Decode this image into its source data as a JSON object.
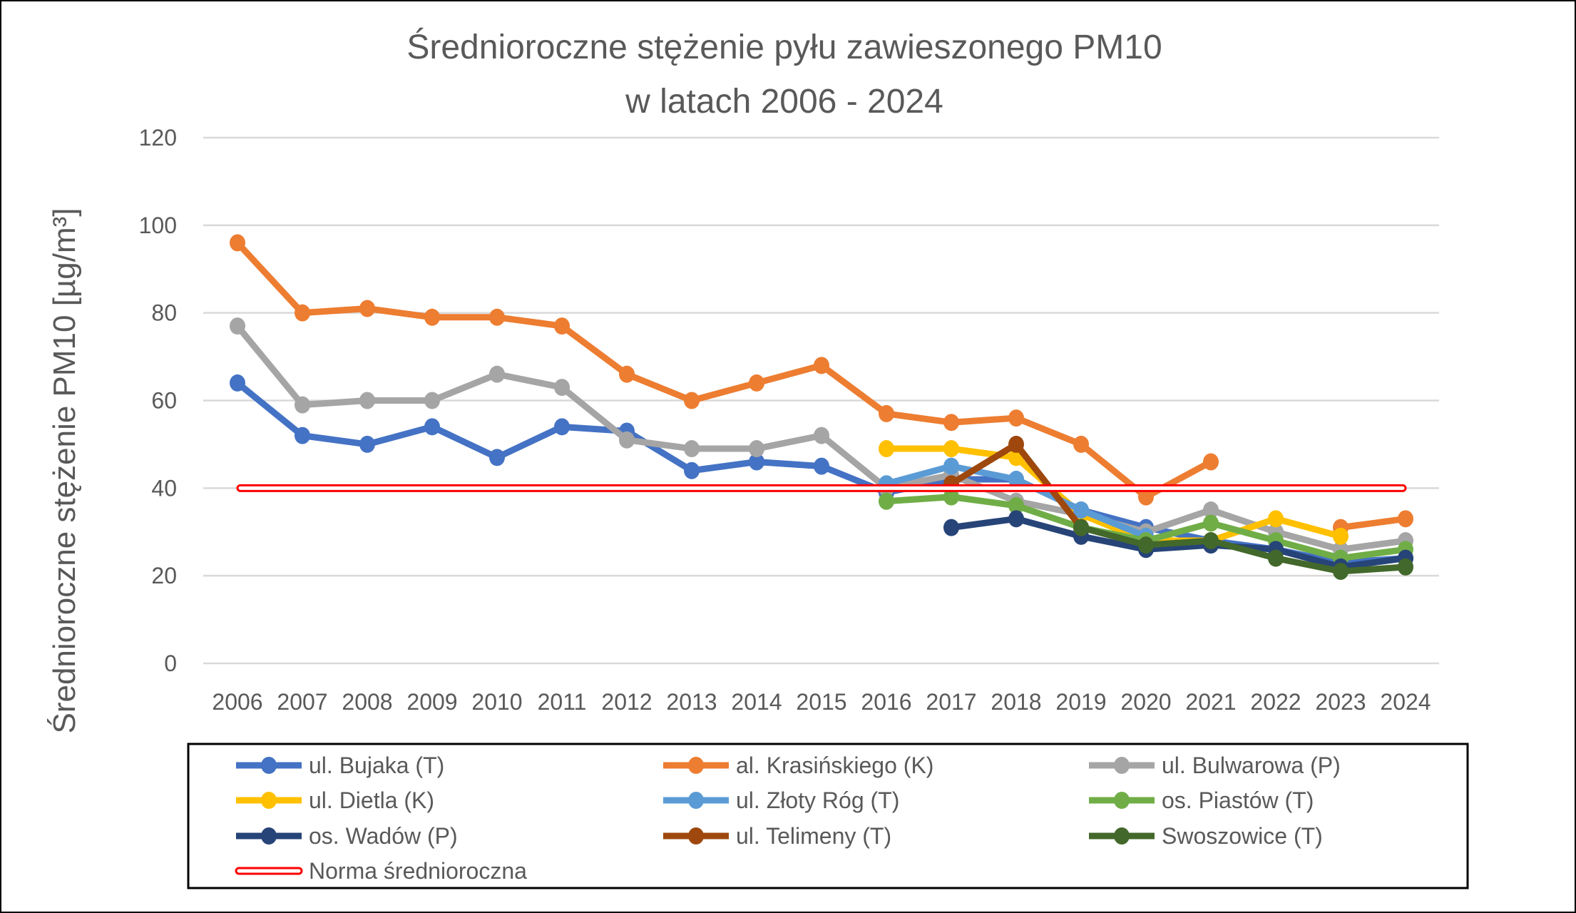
{
  "chart_data": {
    "type": "line",
    "title": [
      "Średnioroczne stężenie pyłu zawieszonego PM10",
      "w latach 2006 - 2024"
    ],
    "xlabel": "",
    "ylabel": "Średnioroczne stężenie PM10 [µg/m³]",
    "ylim": [
      0,
      120
    ],
    "yticks": [
      0,
      20,
      40,
      60,
      80,
      100,
      120
    ],
    "grid": true,
    "legend_position": "bottom",
    "categories": [
      "2006",
      "2007",
      "2008",
      "2009",
      "2010",
      "2011",
      "2012",
      "2013",
      "2014",
      "2015",
      "2016",
      "2017",
      "2018",
      "2019",
      "2020",
      "2021",
      "2022",
      "2023",
      "2024"
    ],
    "series": [
      {
        "name": "ul. Bujaka (T)",
        "color": "#4472C4",
        "values": [
          64,
          52,
          50,
          54,
          47,
          54,
          53,
          44,
          46,
          45,
          39,
          42,
          42,
          35,
          31,
          28,
          26,
          23,
          24
        ]
      },
      {
        "name": "al. Krasińskiego (K)",
        "color": "#ED7D31",
        "values": [
          96,
          80,
          81,
          79,
          79,
          77,
          66,
          60,
          64,
          68,
          57,
          55,
          56,
          50,
          38,
          46,
          null,
          31,
          33
        ]
      },
      {
        "name": "ul. Bulwarowa (P)",
        "color": "#A5A5A5",
        "values": [
          77,
          59,
          60,
          60,
          66,
          63,
          51,
          49,
          49,
          52,
          40,
          43,
          37,
          34,
          30,
          35,
          30,
          26,
          28
        ]
      },
      {
        "name": "ul. Dietla (K)",
        "color": "#FFC000",
        "values": [
          null,
          null,
          null,
          null,
          null,
          null,
          null,
          null,
          null,
          null,
          49,
          49,
          47,
          34,
          28,
          28,
          33,
          29,
          null
        ]
      },
      {
        "name": "ul. Złoty Róg (T)",
        "color": "#5B9BD5",
        "values": [
          null,
          null,
          null,
          null,
          null,
          null,
          null,
          null,
          null,
          null,
          41,
          45,
          42,
          35,
          29,
          null,
          null,
          null,
          null
        ]
      },
      {
        "name": "os. Piastów (T)",
        "color": "#70AD47",
        "values": [
          null,
          null,
          null,
          null,
          null,
          null,
          null,
          null,
          null,
          null,
          37,
          38,
          36,
          31,
          28,
          32,
          28,
          24,
          26
        ]
      },
      {
        "name": "os. Wadów (P)",
        "color": "#264478",
        "values": [
          null,
          null,
          null,
          null,
          null,
          null,
          null,
          null,
          null,
          null,
          null,
          31,
          33,
          29,
          26,
          27,
          26,
          22,
          24
        ]
      },
      {
        "name": "ul. Telimeny (T)",
        "color": "#9E480E",
        "values": [
          null,
          null,
          null,
          null,
          null,
          null,
          null,
          null,
          null,
          null,
          null,
          41,
          50,
          31,
          null,
          null,
          null,
          null,
          null
        ]
      },
      {
        "name": "Swoszowice (T)",
        "color": "#43682B",
        "values": [
          null,
          null,
          null,
          null,
          null,
          null,
          null,
          null,
          null,
          null,
          null,
          null,
          null,
          31,
          27,
          28,
          24,
          21,
          22
        ]
      },
      {
        "name": "Norma średnioroczna",
        "color": "#FF0000",
        "values": [
          40,
          40,
          40,
          40,
          40,
          40,
          40,
          40,
          40,
          40,
          40,
          40,
          40,
          40,
          40,
          40,
          40,
          40,
          40
        ]
      }
    ]
  }
}
